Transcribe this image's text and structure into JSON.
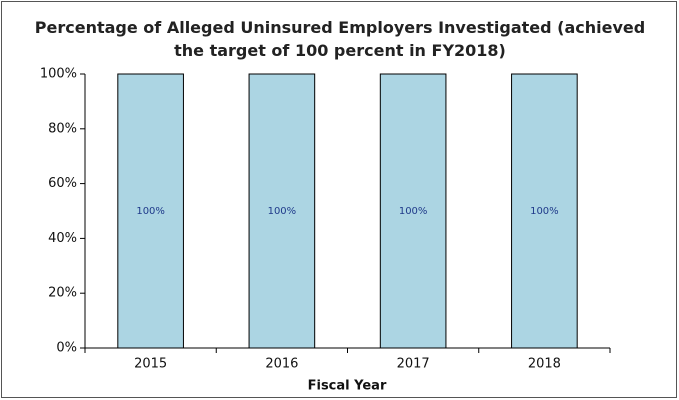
{
  "chart_data": {
    "type": "bar",
    "title": "Percentage of Alleged Uninsured Employers Investigated (achieved the target of 100 percent in FY2018)",
    "x_label": "Fiscal Year",
    "categories": [
      "2015",
      "2016",
      "2017",
      "2018"
    ],
    "values": [
      100,
      100,
      100,
      100
    ],
    "value_labels": [
      "100%",
      "100%",
      "100%",
      "100%"
    ],
    "color": "#acd5e3",
    "ylim": [
      0,
      100
    ],
    "yticks": [
      {
        "value": 0,
        "label": "0%"
      },
      {
        "value": 20,
        "label": "20%"
      },
      {
        "value": 40,
        "label": "40%"
      },
      {
        "value": 60,
        "label": "60%"
      },
      {
        "value": 80,
        "label": "80%"
      },
      {
        "value": 100,
        "label": "100%"
      }
    ],
    "grid": false
  }
}
